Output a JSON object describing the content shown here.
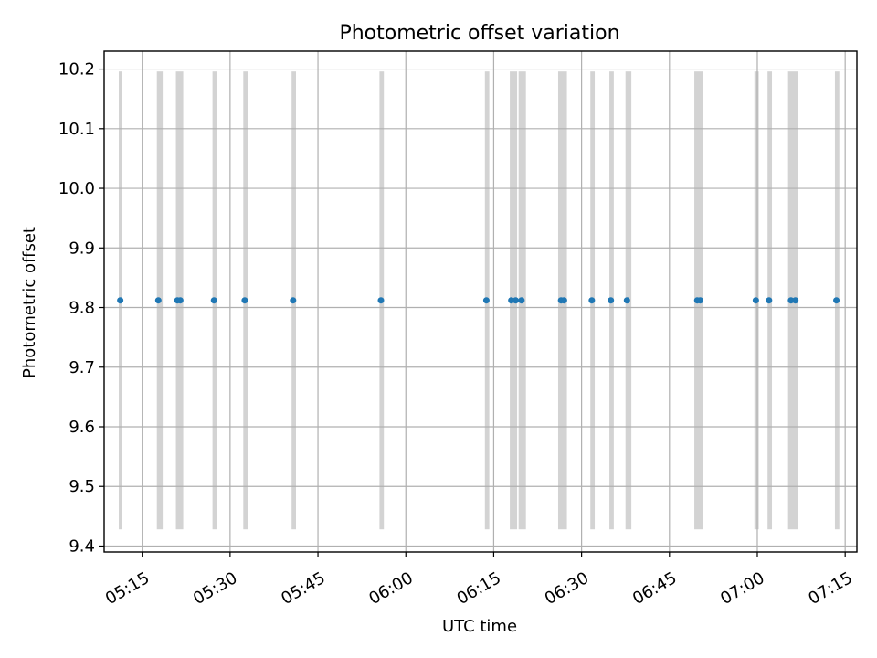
{
  "chart_data": {
    "type": "scatter",
    "title": "Photometric offset variation",
    "xlabel": "UTC time",
    "ylabel": "Photometric offset",
    "x_tick_labels": [
      "05:15",
      "05:30",
      "05:45",
      "06:00",
      "06:15",
      "06:30",
      "06:45",
      "07:00",
      "07:15"
    ],
    "y_tick_labels": [
      "9.4",
      "9.5",
      "9.6",
      "9.7",
      "9.8",
      "9.9",
      "10.0",
      "10.1",
      "10.2"
    ],
    "xlim": [
      "05:08:30",
      "07:17:00"
    ],
    "ylim": [
      9.39,
      10.23
    ],
    "grid": true,
    "series": [
      {
        "color": "#1f77b4",
        "x": [
          "05:11:15",
          "05:17:45",
          "05:21:00",
          "05:21:30",
          "05:27:15",
          "05:32:30",
          "05:40:45",
          "05:55:45",
          "06:13:45",
          "06:18:00",
          "06:18:45",
          "06:19:45",
          "06:26:30",
          "06:27:00",
          "06:31:45",
          "06:35:00",
          "06:37:45",
          "06:49:45",
          "06:50:15",
          "06:59:45",
          "07:02:00",
          "07:05:45",
          "07:06:30",
          "07:13:30"
        ],
        "y": [
          9.812,
          9.812,
          9.812,
          9.812,
          9.812,
          9.812,
          9.812,
          9.812,
          9.812,
          9.812,
          9.812,
          9.812,
          9.812,
          9.812,
          9.812,
          9.812,
          9.812,
          9.812,
          9.812,
          9.812,
          9.812,
          9.812,
          9.812,
          9.812
        ]
      }
    ],
    "shaded_intervals": {
      "color": "#d3d3d3",
      "y_range": [
        9.428,
        10.196
      ],
      "x": [
        [
          "05:11:00",
          "05:11:30"
        ],
        [
          "05:17:30",
          "05:18:30"
        ],
        [
          "05:20:45",
          "05:22:00"
        ],
        [
          "05:27:00",
          "05:27:45"
        ],
        [
          "05:32:15",
          "05:33:00"
        ],
        [
          "05:40:30",
          "05:41:15"
        ],
        [
          "05:55:30",
          "05:56:15"
        ],
        [
          "06:13:30",
          "06:14:15"
        ],
        [
          "06:17:45",
          "06:19:00"
        ],
        [
          "06:19:15",
          "06:20:30"
        ],
        [
          "06:26:00",
          "06:27:30"
        ],
        [
          "06:31:30",
          "06:32:15"
        ],
        [
          "06:34:45",
          "06:35:30"
        ],
        [
          "06:37:30",
          "06:38:30"
        ],
        [
          "06:49:15",
          "06:50:45"
        ],
        [
          "06:59:30",
          "07:00:15"
        ],
        [
          "07:01:45",
          "07:02:30"
        ],
        [
          "07:05:15",
          "07:07:00"
        ],
        [
          "07:13:15",
          "07:14:00"
        ]
      ]
    }
  }
}
